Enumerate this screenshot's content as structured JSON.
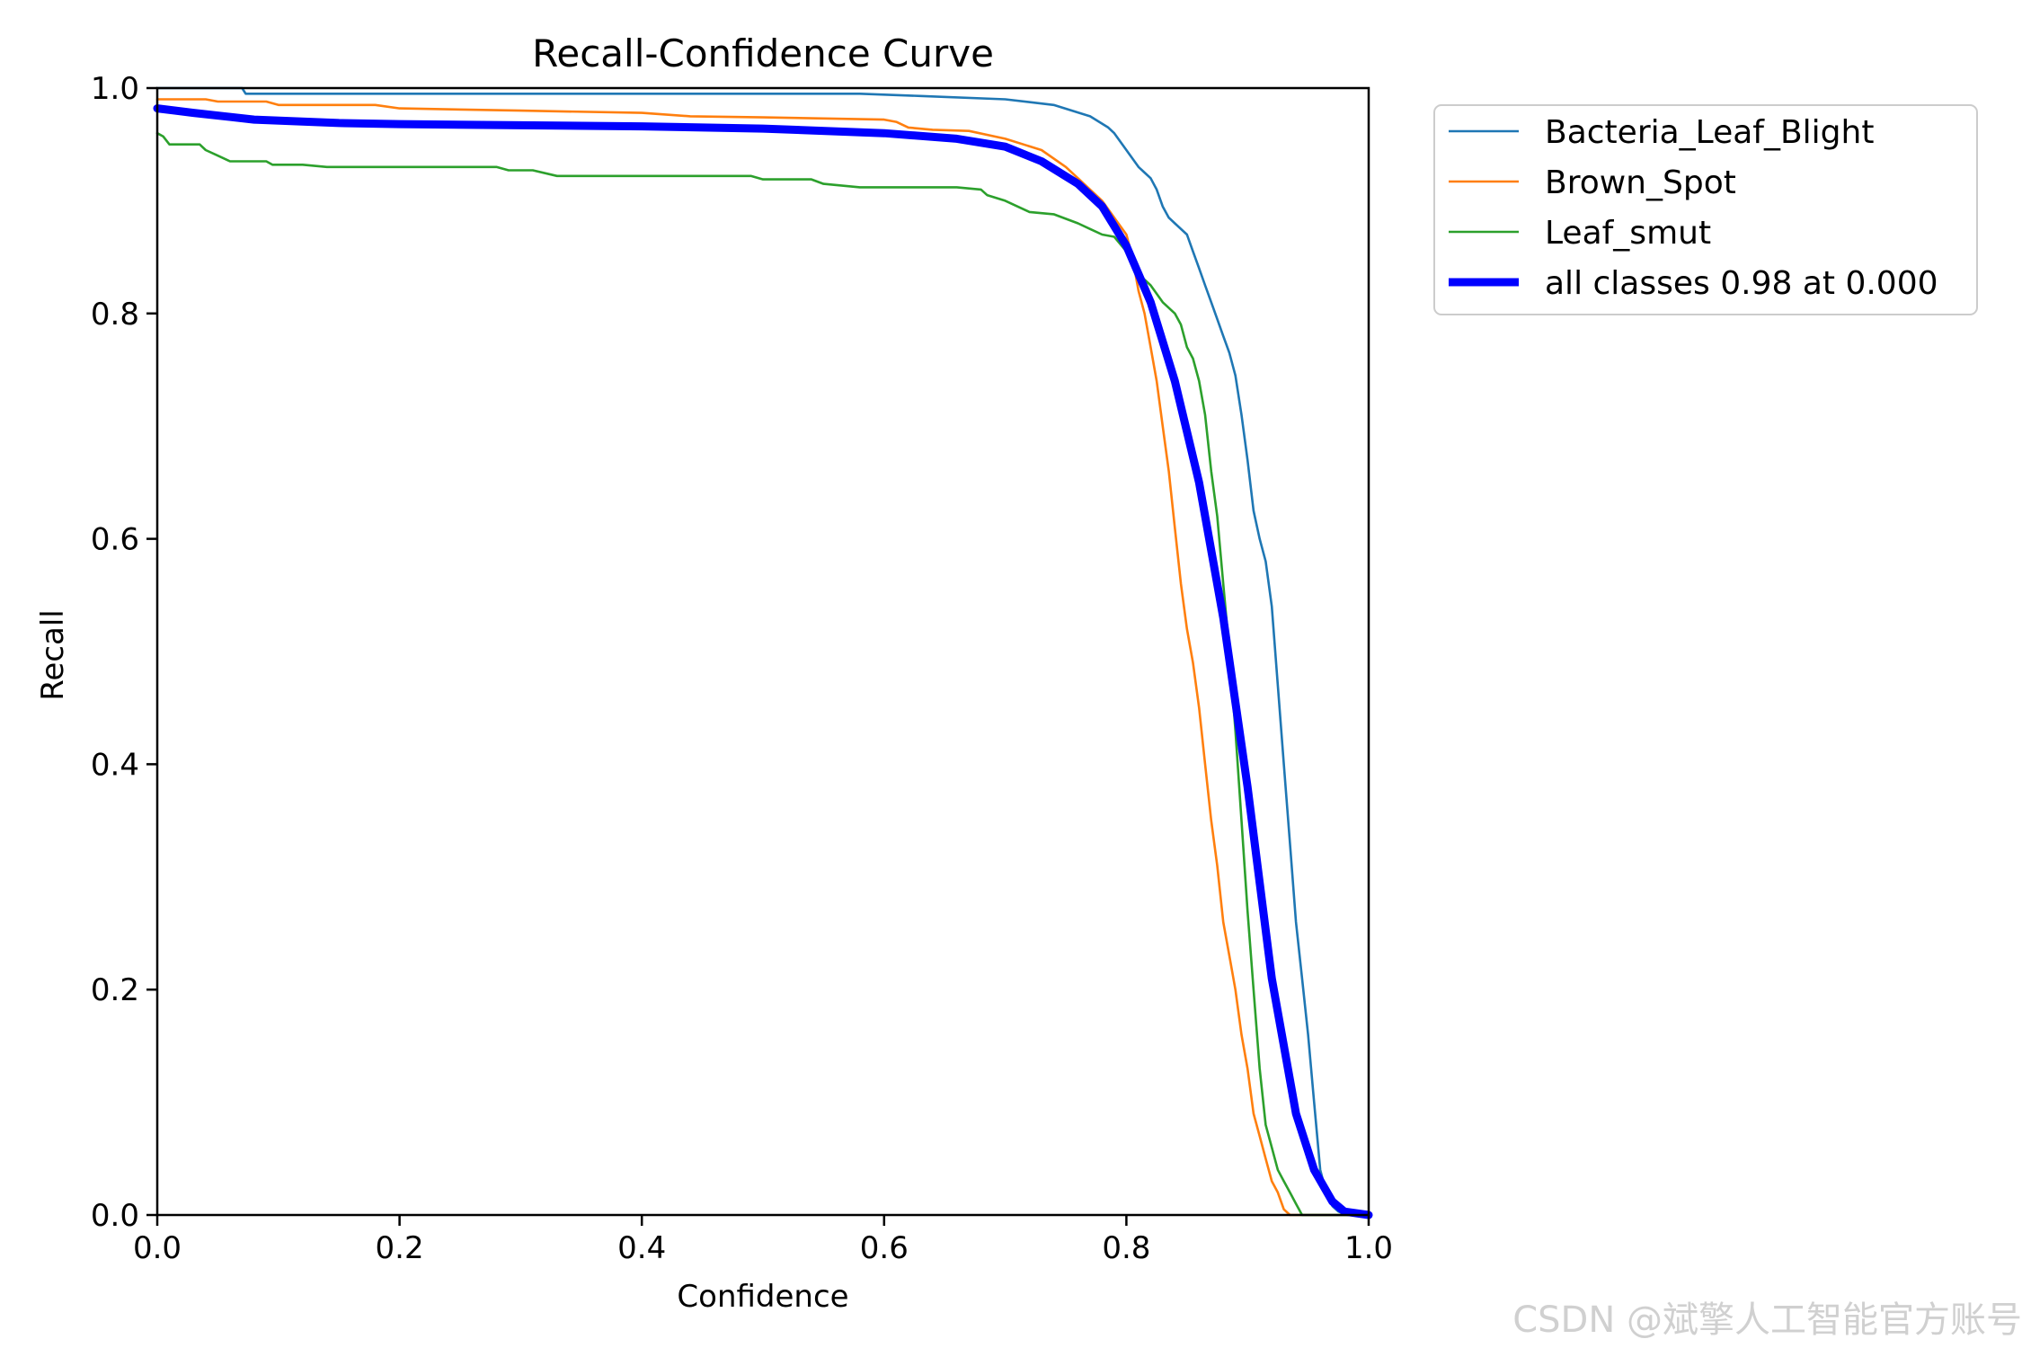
{
  "chart_data": {
    "type": "line",
    "title": "Recall-Confidence Curve",
    "xlabel": "Confidence",
    "ylabel": "Recall",
    "xlim": [
      0,
      1
    ],
    "ylim": [
      0,
      1
    ],
    "x_ticks": [
      "0.0",
      "0.2",
      "0.4",
      "0.6",
      "0.8",
      "1.0"
    ],
    "y_ticks": [
      "0.0",
      "0.2",
      "0.4",
      "0.6",
      "0.8",
      "1.0"
    ],
    "grid": false,
    "legend_position": "outside top-right",
    "series": [
      {
        "name": "Bacteria_Leaf_Blight",
        "color": "#1f77b4",
        "points": [
          [
            0.0,
            1.0
          ],
          [
            0.07,
            1.0
          ],
          [
            0.073,
            0.995
          ],
          [
            0.2,
            0.995
          ],
          [
            0.4,
            0.995
          ],
          [
            0.58,
            0.995
          ],
          [
            0.63,
            0.993
          ],
          [
            0.7,
            0.99
          ],
          [
            0.74,
            0.985
          ],
          [
            0.77,
            0.975
          ],
          [
            0.785,
            0.965
          ],
          [
            0.79,
            0.96
          ],
          [
            0.8,
            0.945
          ],
          [
            0.81,
            0.93
          ],
          [
            0.82,
            0.92
          ],
          [
            0.825,
            0.91
          ],
          [
            0.83,
            0.895
          ],
          [
            0.835,
            0.885
          ],
          [
            0.84,
            0.88
          ],
          [
            0.85,
            0.87
          ],
          [
            0.855,
            0.855
          ],
          [
            0.86,
            0.84
          ],
          [
            0.865,
            0.825
          ],
          [
            0.87,
            0.81
          ],
          [
            0.875,
            0.795
          ],
          [
            0.88,
            0.78
          ],
          [
            0.885,
            0.765
          ],
          [
            0.89,
            0.745
          ],
          [
            0.895,
            0.71
          ],
          [
            0.9,
            0.67
          ],
          [
            0.905,
            0.625
          ],
          [
            0.91,
            0.6
          ],
          [
            0.915,
            0.58
          ],
          [
            0.92,
            0.54
          ],
          [
            0.925,
            0.47
          ],
          [
            0.93,
            0.4
          ],
          [
            0.935,
            0.33
          ],
          [
            0.94,
            0.26
          ],
          [
            0.945,
            0.21
          ],
          [
            0.95,
            0.16
          ],
          [
            0.955,
            0.1
          ],
          [
            0.96,
            0.04
          ],
          [
            0.965,
            0.02
          ],
          [
            0.97,
            0.008
          ],
          [
            0.975,
            0.003
          ],
          [
            0.98,
            0.001
          ],
          [
            1.0,
            0.0
          ]
        ]
      },
      {
        "name": "Brown_Spot",
        "color": "#ff7f0e",
        "points": [
          [
            0.0,
            0.99
          ],
          [
            0.04,
            0.99
          ],
          [
            0.05,
            0.988
          ],
          [
            0.09,
            0.988
          ],
          [
            0.1,
            0.985
          ],
          [
            0.18,
            0.985
          ],
          [
            0.2,
            0.982
          ],
          [
            0.3,
            0.98
          ],
          [
            0.4,
            0.978
          ],
          [
            0.44,
            0.975
          ],
          [
            0.5,
            0.974
          ],
          [
            0.6,
            0.972
          ],
          [
            0.61,
            0.97
          ],
          [
            0.62,
            0.965
          ],
          [
            0.64,
            0.963
          ],
          [
            0.67,
            0.962
          ],
          [
            0.7,
            0.955
          ],
          [
            0.73,
            0.945
          ],
          [
            0.75,
            0.93
          ],
          [
            0.76,
            0.92
          ],
          [
            0.77,
            0.91
          ],
          [
            0.78,
            0.9
          ],
          [
            0.79,
            0.885
          ],
          [
            0.8,
            0.87
          ],
          [
            0.805,
            0.85
          ],
          [
            0.81,
            0.82
          ],
          [
            0.815,
            0.8
          ],
          [
            0.82,
            0.77
          ],
          [
            0.825,
            0.74
          ],
          [
            0.83,
            0.7
          ],
          [
            0.835,
            0.66
          ],
          [
            0.84,
            0.61
          ],
          [
            0.845,
            0.56
          ],
          [
            0.85,
            0.52
          ],
          [
            0.855,
            0.49
          ],
          [
            0.86,
            0.45
          ],
          [
            0.865,
            0.4
          ],
          [
            0.87,
            0.35
          ],
          [
            0.875,
            0.31
          ],
          [
            0.88,
            0.26
          ],
          [
            0.885,
            0.23
          ],
          [
            0.89,
            0.2
          ],
          [
            0.895,
            0.16
          ],
          [
            0.9,
            0.13
          ],
          [
            0.905,
            0.09
          ],
          [
            0.91,
            0.07
          ],
          [
            0.915,
            0.05
          ],
          [
            0.92,
            0.03
          ],
          [
            0.925,
            0.02
          ],
          [
            0.93,
            0.005
          ],
          [
            0.935,
            0.0
          ],
          [
            1.0,
            0.0
          ]
        ]
      },
      {
        "name": "Leaf_smut",
        "color": "#2ca02c",
        "points": [
          [
            0.0,
            0.96
          ],
          [
            0.005,
            0.957
          ],
          [
            0.01,
            0.95
          ],
          [
            0.035,
            0.95
          ],
          [
            0.04,
            0.945
          ],
          [
            0.05,
            0.94
          ],
          [
            0.06,
            0.935
          ],
          [
            0.09,
            0.935
          ],
          [
            0.095,
            0.932
          ],
          [
            0.12,
            0.932
          ],
          [
            0.14,
            0.93
          ],
          [
            0.28,
            0.93
          ],
          [
            0.29,
            0.927
          ],
          [
            0.31,
            0.927
          ],
          [
            0.33,
            0.922
          ],
          [
            0.49,
            0.922
          ],
          [
            0.5,
            0.919
          ],
          [
            0.54,
            0.919
          ],
          [
            0.55,
            0.915
          ],
          [
            0.58,
            0.912
          ],
          [
            0.66,
            0.912
          ],
          [
            0.68,
            0.91
          ],
          [
            0.685,
            0.905
          ],
          [
            0.7,
            0.9
          ],
          [
            0.71,
            0.895
          ],
          [
            0.72,
            0.89
          ],
          [
            0.74,
            0.888
          ],
          [
            0.76,
            0.88
          ],
          [
            0.77,
            0.875
          ],
          [
            0.78,
            0.87
          ],
          [
            0.79,
            0.868
          ],
          [
            0.8,
            0.855
          ],
          [
            0.81,
            0.835
          ],
          [
            0.815,
            0.83
          ],
          [
            0.82,
            0.825
          ],
          [
            0.83,
            0.81
          ],
          [
            0.84,
            0.8
          ],
          [
            0.845,
            0.79
          ],
          [
            0.85,
            0.77
          ],
          [
            0.855,
            0.76
          ],
          [
            0.86,
            0.74
          ],
          [
            0.865,
            0.71
          ],
          [
            0.87,
            0.66
          ],
          [
            0.875,
            0.62
          ],
          [
            0.88,
            0.56
          ],
          [
            0.885,
            0.5
          ],
          [
            0.89,
            0.43
          ],
          [
            0.895,
            0.35
          ],
          [
            0.9,
            0.27
          ],
          [
            0.905,
            0.2
          ],
          [
            0.91,
            0.13
          ],
          [
            0.915,
            0.08
          ],
          [
            0.92,
            0.06
          ],
          [
            0.925,
            0.04
          ],
          [
            0.93,
            0.03
          ],
          [
            0.935,
            0.02
          ],
          [
            0.94,
            0.01
          ],
          [
            0.945,
            0.0
          ],
          [
            1.0,
            0.0
          ]
        ]
      },
      {
        "name": "all classes 0.98 at 0.000",
        "color": "#0000ff",
        "points": [
          [
            0.0,
            0.982
          ],
          [
            0.03,
            0.978
          ],
          [
            0.08,
            0.972
          ],
          [
            0.15,
            0.969
          ],
          [
            0.2,
            0.968
          ],
          [
            0.3,
            0.967
          ],
          [
            0.4,
            0.966
          ],
          [
            0.5,
            0.964
          ],
          [
            0.6,
            0.96
          ],
          [
            0.66,
            0.955
          ],
          [
            0.7,
            0.948
          ],
          [
            0.73,
            0.935
          ],
          [
            0.76,
            0.915
          ],
          [
            0.78,
            0.895
          ],
          [
            0.8,
            0.86
          ],
          [
            0.82,
            0.81
          ],
          [
            0.84,
            0.74
          ],
          [
            0.86,
            0.65
          ],
          [
            0.88,
            0.53
          ],
          [
            0.9,
            0.38
          ],
          [
            0.92,
            0.21
          ],
          [
            0.94,
            0.09
          ],
          [
            0.955,
            0.04
          ],
          [
            0.97,
            0.012
          ],
          [
            0.98,
            0.003
          ],
          [
            1.0,
            0.0
          ]
        ]
      }
    ]
  },
  "watermark": "CSDN @斌擎人工智能官方账号"
}
